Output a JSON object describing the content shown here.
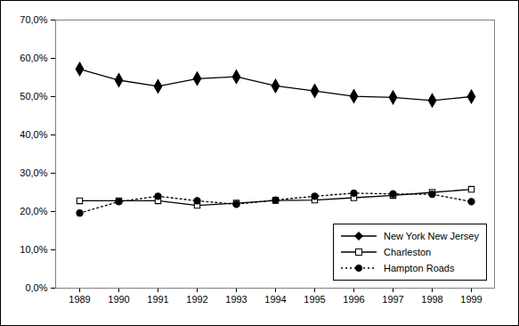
{
  "chart_data": {
    "type": "line",
    "categories": [
      "1989",
      "1990",
      "1991",
      "1992",
      "1993",
      "1994",
      "1995",
      "1996",
      "1997",
      "1998",
      "1999"
    ],
    "series": [
      {
        "name": "New York New Jersey",
        "color": "#000000",
        "marker": "diamond",
        "line_style": "solid",
        "values": [
          57.2,
          54.3,
          52.7,
          54.7,
          55.2,
          52.8,
          51.5,
          50.1,
          49.8,
          49.0,
          50.0
        ]
      },
      {
        "name": "Charleston",
        "color": "#000000",
        "marker": "square-open",
        "line_style": "solid",
        "values": [
          22.8,
          22.8,
          22.8,
          21.6,
          22.2,
          22.9,
          23.0,
          23.6,
          24.2,
          25.0,
          25.8
        ]
      },
      {
        "name": "Hampton Roads",
        "color": "#000000",
        "marker": "circle",
        "line_style": "dotted",
        "values": [
          19.6,
          22.6,
          24.0,
          22.8,
          21.9,
          23.0,
          24.0,
          24.8,
          24.6,
          24.5,
          22.6
        ]
      }
    ],
    "ylim": [
      0,
      70
    ],
    "yticks": [
      {
        "value": 0,
        "label": "0,0%"
      },
      {
        "value": 10,
        "label": "10,0%"
      },
      {
        "value": 20,
        "label": "20,0%"
      },
      {
        "value": 30,
        "label": "30,0%"
      },
      {
        "value": 40,
        "label": "40,0%"
      },
      {
        "value": 50,
        "label": "50,0%"
      },
      {
        "value": 60,
        "label": "60,0%"
      },
      {
        "value": 70,
        "label": "70,0%"
      }
    ],
    "grid": false,
    "legend": "lower right"
  }
}
